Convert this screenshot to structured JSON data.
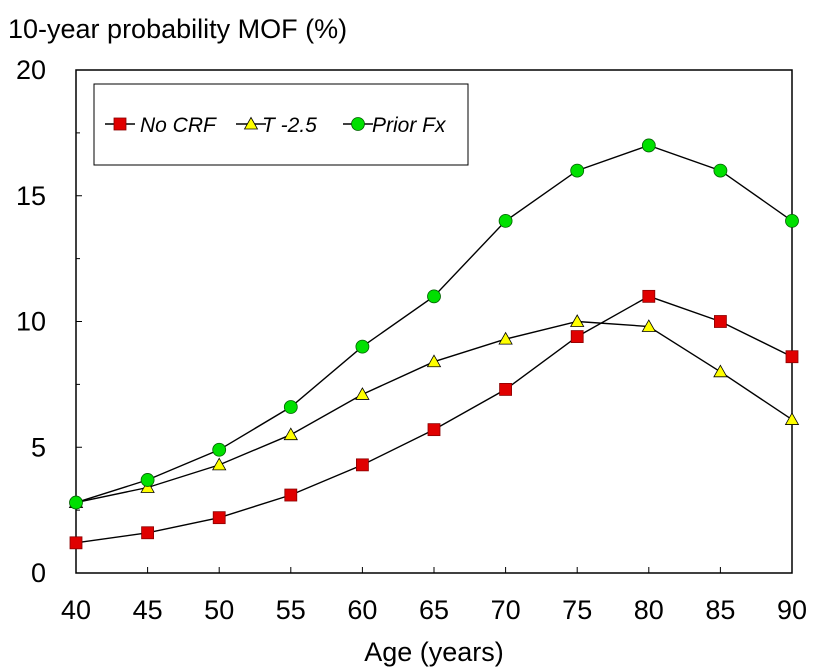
{
  "chart_data": {
    "type": "line",
    "title": "",
    "ylabel": "10-year probability MOF (%)",
    "xlabel": "Age (years)",
    "x": [
      40,
      45,
      50,
      55,
      60,
      65,
      70,
      75,
      80,
      85,
      90
    ],
    "xlim": [
      40,
      90
    ],
    "ylim": [
      0,
      20
    ],
    "yticks": [
      0,
      5,
      10,
      15,
      20
    ],
    "grid": false,
    "legend_position": "top-left",
    "series": [
      {
        "name": "No CRF",
        "marker": "square",
        "color": "#e00000",
        "values": [
          1.2,
          1.6,
          2.2,
          3.1,
          4.3,
          5.7,
          7.3,
          9.4,
          11.0,
          10.0,
          8.6
        ]
      },
      {
        "name": "T -2.5",
        "marker": "triangle",
        "color": "#ffff00",
        "values": [
          2.8,
          3.4,
          4.3,
          5.5,
          7.1,
          8.4,
          9.3,
          10.0,
          9.8,
          8.0,
          6.1
        ]
      },
      {
        "name": "Prior Fx",
        "marker": "circle",
        "color": "#00e000",
        "values": [
          2.8,
          3.7,
          4.9,
          6.6,
          9.0,
          11.0,
          14.0,
          16.0,
          17.0,
          16.0,
          14.0
        ]
      }
    ]
  }
}
